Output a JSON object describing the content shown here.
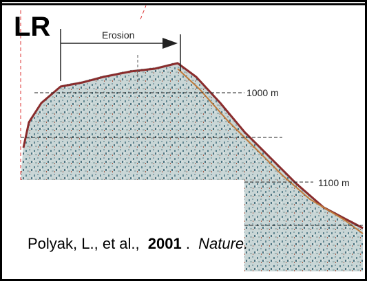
{
  "figure": {
    "label": "LR",
    "annotations": {
      "erosion": "Erosion",
      "depth_upper": "1000 m",
      "depth_lower": "1100 m"
    }
  },
  "citation": {
    "authors": "Polyak, L., et al.,",
    "year": "2001",
    "separator": ".",
    "journal": "Nature."
  }
}
